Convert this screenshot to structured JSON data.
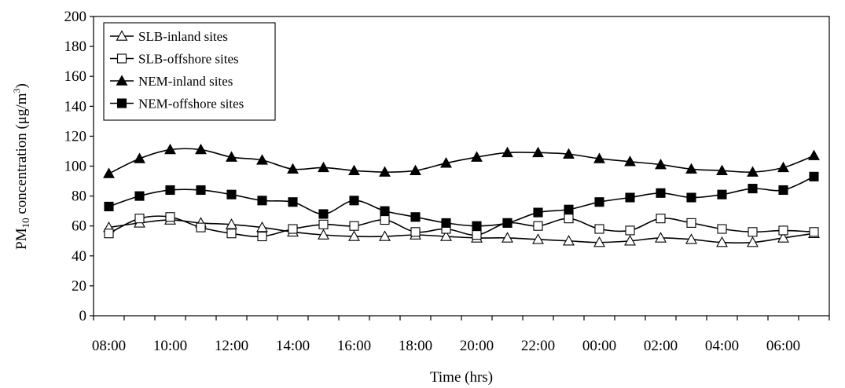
{
  "chart_data": {
    "type": "line",
    "xlabel": "Time (hrs)",
    "ylabel": "PM10 concentration (μg/m3)",
    "ylabel_parts": {
      "main": "PM",
      "subscript": "10",
      "rest": " concentration (μg/m",
      "superscript": "3",
      "end": ")"
    },
    "ylim": [
      0,
      200
    ],
    "yticks": [
      0,
      20,
      40,
      60,
      80,
      100,
      120,
      140,
      160,
      180,
      200
    ],
    "x": [
      "08:00",
      "09:00",
      "10:00",
      "11:00",
      "12:00",
      "13:00",
      "14:00",
      "15:00",
      "16:00",
      "17:00",
      "18:00",
      "19:00",
      "20:00",
      "21:00",
      "22:00",
      "23:00",
      "00:00",
      "01:00",
      "02:00",
      "03:00",
      "04:00",
      "05:00",
      "06:00",
      "07:00"
    ],
    "xtick_labels": [
      "08:00",
      "10:00",
      "12:00",
      "14:00",
      "16:00",
      "18:00",
      "20:00",
      "22:00",
      "00:00",
      "02:00",
      "04:00",
      "06:00"
    ],
    "grid": false,
    "legend_position": "top-left",
    "series": [
      {
        "name": "SLB-inland sites",
        "marker": "triangle-open",
        "values": [
          59,
          62,
          64,
          62,
          61,
          59,
          56,
          54,
          53,
          53,
          54,
          53,
          52,
          52,
          51,
          50,
          49,
          50,
          52,
          51,
          49,
          49,
          52,
          55
        ]
      },
      {
        "name": "SLB-offshore sites",
        "marker": "square-open",
        "values": [
          55,
          65,
          66,
          59,
          55,
          53,
          58,
          61,
          60,
          64,
          56,
          58,
          54,
          62,
          60,
          65,
          58,
          57,
          65,
          62,
          58,
          56,
          57,
          56
        ]
      },
      {
        "name": "NEM-inland sites",
        "marker": "triangle-filled",
        "values": [
          95,
          105,
          111,
          111,
          106,
          104,
          98,
          99,
          97,
          96,
          97,
          102,
          106,
          109,
          109,
          108,
          105,
          103,
          101,
          98,
          97,
          96,
          99,
          107
        ]
      },
      {
        "name": "NEM-offshore sites",
        "marker": "square-filled",
        "values": [
          73,
          80,
          84,
          84,
          81,
          77,
          76,
          68,
          77,
          70,
          66,
          62,
          60,
          62,
          69,
          71,
          76,
          79,
          82,
          79,
          81,
          85,
          84,
          93
        ]
      }
    ]
  }
}
